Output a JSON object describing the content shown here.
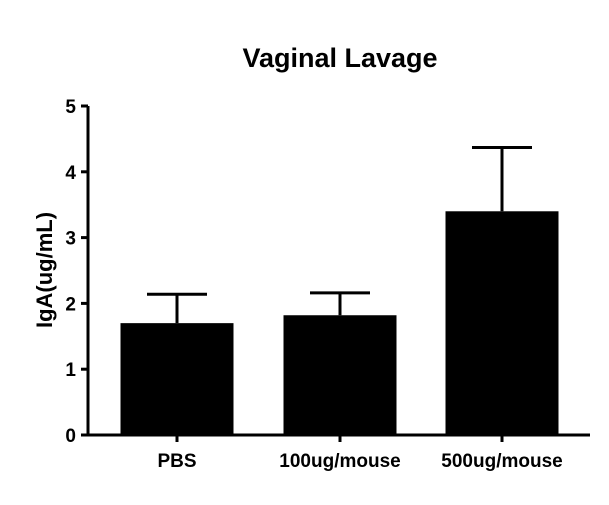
{
  "chart_data": {
    "type": "bar",
    "title": "Vaginal Lavage",
    "xlabel": "",
    "ylabel": "IgA(ug/mL)",
    "categories": [
      "PBS",
      "100ug/mouse",
      "500ug/mouse"
    ],
    "values": [
      1.7,
      1.82,
      3.4
    ],
    "error_upper": [
      2.14,
      2.16,
      4.37
    ],
    "ylim": [
      0,
      5
    ],
    "yticks": [
      0,
      1,
      2,
      3,
      4,
      5
    ],
    "grid": false,
    "bar_color": "#000000"
  }
}
